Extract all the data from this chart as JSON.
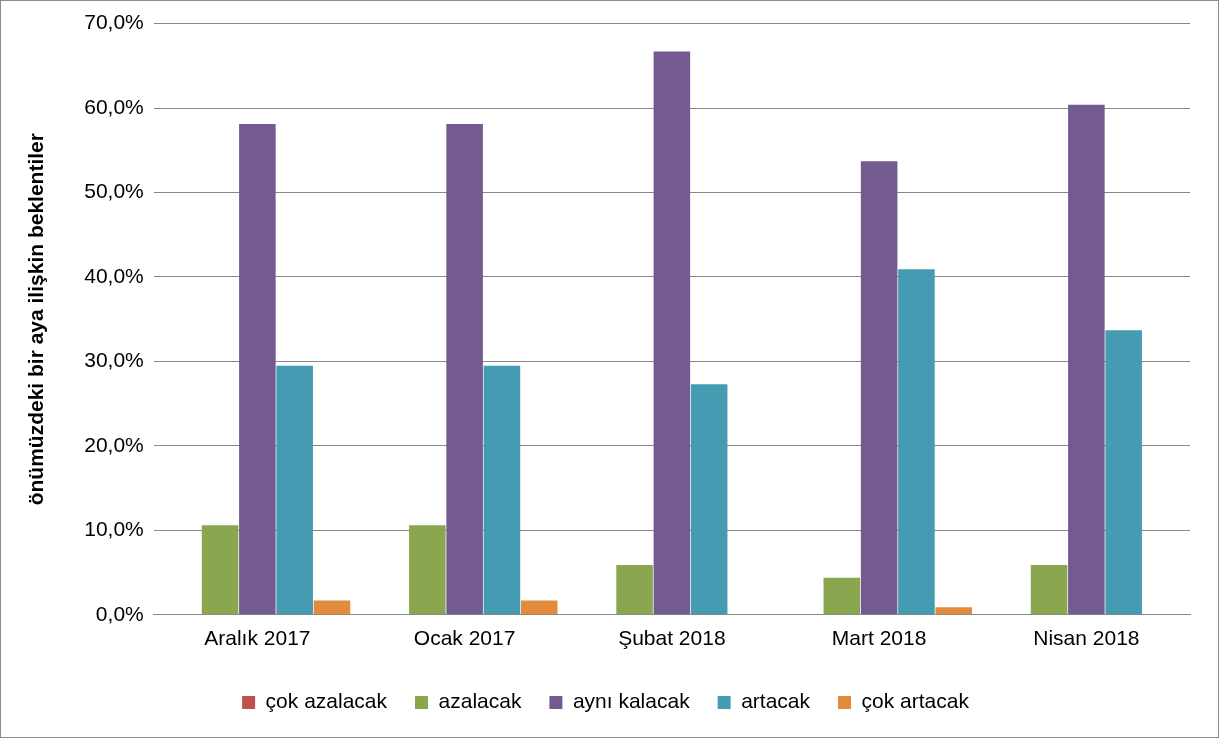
{
  "chart_data": {
    "type": "bar",
    "ylabel": "önümüzdeki bir aya ilişkin beklentiler",
    "categories": [
      "Aralık 2017",
      "Ocak 2017",
      "Şubat 2018",
      "Mart 2018",
      "Nisan 2018"
    ],
    "series": [
      {
        "name": "çok azalacak",
        "color": "#c0504d",
        "values": [
          0,
          0,
          0,
          0,
          0
        ]
      },
      {
        "name": "azalacak",
        "color": "#8aa74f",
        "values": [
          10.6,
          10.6,
          5.9,
          4.4,
          5.9
        ]
      },
      {
        "name": "aynı kalacak",
        "color": "#735a91",
        "values": [
          58.1,
          58.1,
          66.7,
          53.7,
          60.4
        ]
      },
      {
        "name": "artacak",
        "color": "#449bb2",
        "values": [
          29.5,
          29.5,
          27.3,
          40.9,
          33.7
        ]
      },
      {
        "name": "çok artacak",
        "color": "#e28b3c",
        "values": [
          1.7,
          1.7,
          0,
          0.9,
          0
        ]
      }
    ],
    "ylim": [
      0,
      70
    ],
    "yticks": [
      {
        "value": 0,
        "label": "0,0%"
      },
      {
        "value": 10,
        "label": "10,0%"
      },
      {
        "value": 20,
        "label": "20,0%"
      },
      {
        "value": 30,
        "label": "30,0%"
      },
      {
        "value": 40,
        "label": "40,0%"
      },
      {
        "value": 50,
        "label": "50,0%"
      },
      {
        "value": 60,
        "label": "60,0%"
      },
      {
        "value": 70,
        "label": "70,0%"
      }
    ],
    "grid": "y",
    "legend": "bottom"
  }
}
